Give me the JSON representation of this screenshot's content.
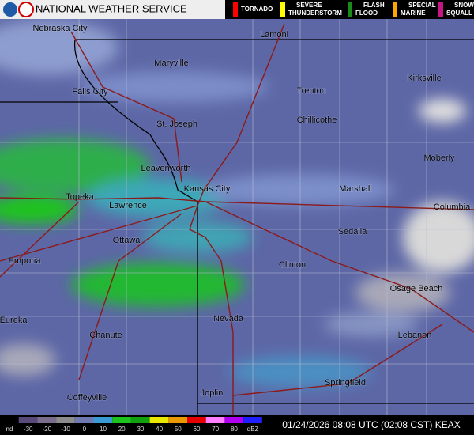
{
  "header": {
    "title": "NATIONAL WEATHER SERVICE",
    "warnings": [
      {
        "label": "TORNADO",
        "color": "#ff0000"
      },
      {
        "label": "SEVERE THUNDERSTORM",
        "color": "#ffff00"
      },
      {
        "label": "FLASH FLOOD",
        "color": "#1a8a1a"
      },
      {
        "label": "SPECIAL MARINE",
        "color": "#ffa500"
      },
      {
        "label": "SNOW SQUALL",
        "color": "#c71585"
      }
    ]
  },
  "map": {
    "cities": [
      "Nebraska City",
      "Lamoni",
      "Maryville",
      "Kirksville",
      "Falls City",
      "Trenton",
      "St. Joseph",
      "Chillicothe",
      "Moberly",
      "Leavenworth",
      "Kansas City",
      "Marshall",
      "Topeka",
      "Lawrence",
      "Columbia",
      "Sedalia",
      "Ottawa",
      "Emporia",
      "Clinton",
      "Osage Beach",
      "Eureka",
      "Nevada",
      "Chanute",
      "Lebanon",
      "Springfield",
      "Joplin",
      "Coffeyville"
    ]
  },
  "scale": {
    "labels": [
      "nd",
      "-30",
      "-20",
      "-10",
      "0",
      "10",
      "20",
      "30",
      "40",
      "50",
      "60",
      "70",
      "80",
      "dBZ"
    ],
    "colors": [
      "#000000",
      "#5a4a7a",
      "#7a6e8c",
      "#8c8c8c",
      "#6f79b0",
      "#3a9ad6",
      "#1ec41e",
      "#10a010",
      "#e8e800",
      "#e89a00",
      "#e80000",
      "#ff80ff",
      "#b000f0",
      "#2020ff"
    ]
  },
  "footer": {
    "timestamp": "01/24/2026 08:08 UTC (02:08 CST) KEAX"
  }
}
